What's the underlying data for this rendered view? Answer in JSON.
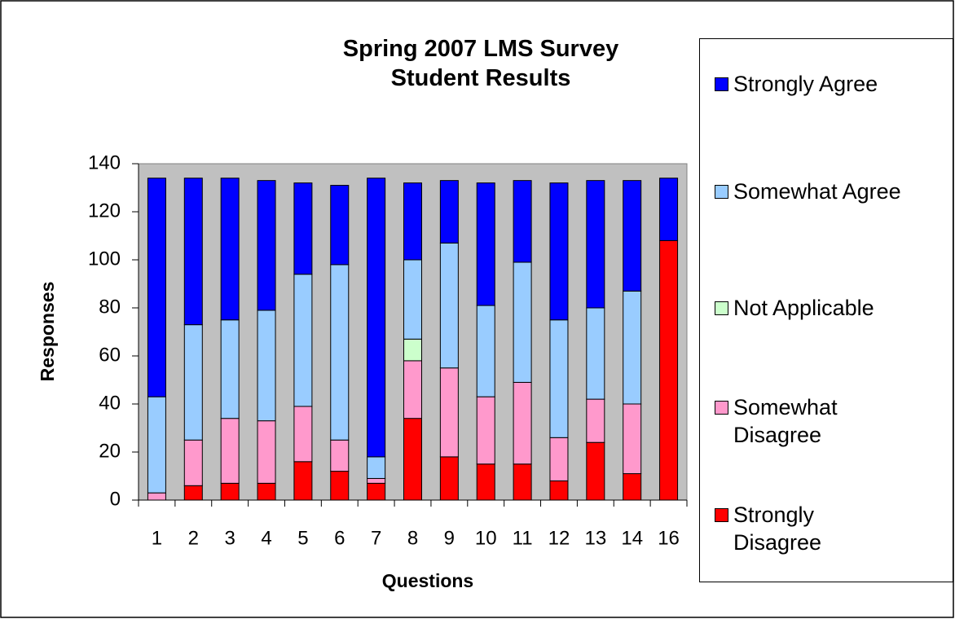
{
  "chart_data": {
    "type": "bar",
    "stacked": true,
    "title": "Spring 2007 LMS Survey Student Results",
    "x_label": "Questions",
    "y_label": "Responses",
    "categories": [
      "1",
      "2",
      "3",
      "4",
      "5",
      "6",
      "7",
      "8",
      "9",
      "10",
      "11",
      "12",
      "13",
      "14",
      "16"
    ],
    "series": [
      {
        "name": "Strongly Disagree",
        "color": "#ff0000",
        "values": [
          0,
          6,
          7,
          7,
          16,
          12,
          7,
          34,
          18,
          15,
          15,
          8,
          24,
          11,
          108
        ]
      },
      {
        "name": "Somewhat Disagree",
        "color": "#ff99cc",
        "values": [
          3,
          19,
          27,
          26,
          23,
          13,
          2,
          24,
          37,
          28,
          34,
          18,
          18,
          29,
          0
        ]
      },
      {
        "name": "Not Applicable",
        "color": "#ccffcc",
        "values": [
          0,
          0,
          0,
          0,
          0,
          0,
          0,
          9,
          0,
          0,
          0,
          0,
          0,
          0,
          0
        ]
      },
      {
        "name": "Somewhat Agree",
        "color": "#99ccff",
        "values": [
          40,
          48,
          41,
          46,
          55,
          73,
          9,
          33,
          52,
          38,
          50,
          49,
          38,
          47,
          0
        ]
      },
      {
        "name": "Strongly Agree",
        "color": "#0000ff",
        "values": [
          91,
          61,
          59,
          54,
          38,
          33,
          116,
          32,
          26,
          51,
          34,
          57,
          53,
          46,
          26
        ]
      }
    ],
    "ylim": [
      0,
      140
    ],
    "yticks": [
      0,
      20,
      40,
      60,
      80,
      100,
      120,
      140
    ],
    "grid": false,
    "legend": "right",
    "plot_background": "#c0c0c0"
  }
}
